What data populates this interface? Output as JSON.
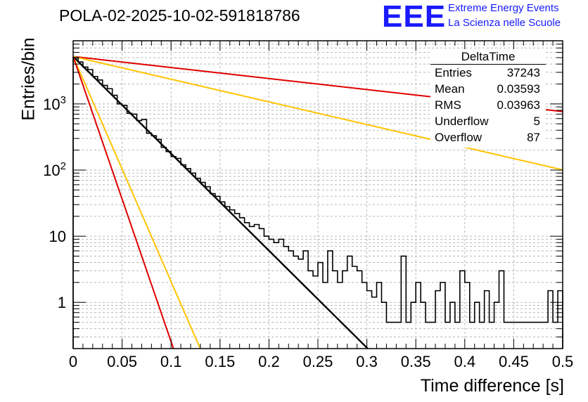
{
  "title": "POLA-02-2025-10-02-591818786",
  "logo": {
    "mark": "EEE",
    "line1": "Extreme Energy Events",
    "line2": "La Scienza nelle Scuole",
    "color": "#1a1aff"
  },
  "stats": {
    "name": "DeltaTime",
    "rows": [
      {
        "label": "Entries",
        "value": "37243"
      },
      {
        "label": "Mean",
        "value": "0.03593"
      },
      {
        "label": "RMS",
        "value": "0.03963"
      },
      {
        "label": "Underflow",
        "value": "5"
      },
      {
        "label": "Overflow",
        "value": "87"
      }
    ]
  },
  "chart_data": {
    "type": "line",
    "title": "POLA-02-2025-10-02-591818786",
    "xlabel": "Time difference [s]",
    "ylabel": "Entries/bin",
    "xlim": [
      0,
      0.5
    ],
    "ylim": [
      0.2,
      9000
    ],
    "yscale": "log",
    "grid": true,
    "x_ticks": [
      0,
      0.05,
      0.1,
      0.15,
      0.2,
      0.25,
      0.3,
      0.35,
      0.4,
      0.45,
      0.5
    ],
    "x_tick_labels": [
      "0",
      "0.05",
      "0.1",
      "0.15",
      "0.2",
      "0.25",
      "0.3",
      "0.35",
      "0.4",
      "0.45",
      "0.5"
    ],
    "y_ticks": [
      1,
      10,
      100,
      1000
    ],
    "y_tick_labels": [
      "1",
      "10",
      "10^2",
      "10^3"
    ],
    "histogram": {
      "name": "DeltaTime",
      "color": "#000000",
      "bin_width": 0.005,
      "values": [
        5000,
        4300,
        3600,
        3300,
        2600,
        2300,
        1900,
        1700,
        1350,
        1000,
        950,
        720,
        700,
        560,
        580,
        360,
        330,
        290,
        220,
        190,
        160,
        150,
        120,
        105,
        90,
        75,
        65,
        56,
        44,
        40,
        33,
        28,
        25,
        22,
        19,
        16,
        14,
        15,
        13,
        10,
        9,
        8,
        9,
        7,
        6,
        5,
        4.5,
        6,
        3,
        2.5,
        4,
        2,
        6,
        3,
        2,
        3,
        5,
        3.5,
        3,
        2,
        1.5,
        1.2,
        2,
        1,
        0.5,
        0.5,
        0.5,
        5,
        0.5,
        1,
        2,
        1,
        0.5,
        0.5,
        1.5,
        2,
        0.5,
        1,
        0.5,
        3,
        2,
        0.5,
        1,
        0.5,
        1.5,
        0.5,
        1,
        3,
        0.5,
        0.5,
        0.5,
        0.5,
        0.5,
        0.5,
        0.5,
        0.5,
        0.5,
        1.5,
        0.5,
        1.5
      ]
    },
    "series": [
      {
        "name": "fit",
        "color": "#000000",
        "A": 5200,
        "tau": 0.0296
      },
      {
        "name": "tau-upper-red",
        "color": "#e00000",
        "A": 5200,
        "tau": 0.261
      },
      {
        "name": "tau-upper-yellow",
        "color": "#ffc400",
        "A": 5200,
        "tau": 0.1267
      },
      {
        "name": "tau-lower-yellow",
        "color": "#ffc400",
        "A": 5200,
        "tau": 0.01277
      },
      {
        "name": "tau-lower-red",
        "color": "#e00000",
        "A": 5200,
        "tau": 0.01008
      }
    ]
  }
}
